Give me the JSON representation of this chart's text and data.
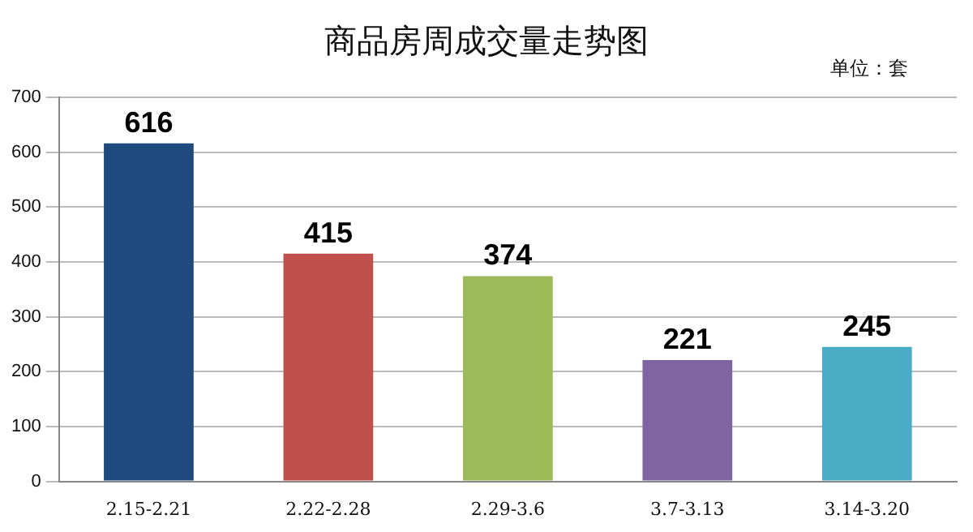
{
  "chart_data": {
    "type": "bar",
    "title": "商品房周成交量走势图",
    "annotations": [
      "单位：套"
    ],
    "categories": [
      "2.15-2.21",
      "2.22-2.28",
      "2.29-3.6",
      "3.7-3.13",
      "3.14-3.20"
    ],
    "values": [
      616,
      415,
      374,
      221,
      245
    ],
    "colors": [
      "#1f4a7e",
      "#c0504d",
      "#9bbb59",
      "#8064a2",
      "#4bacc6"
    ],
    "ylim": [
      0,
      700
    ],
    "yticks": [
      0,
      100,
      200,
      300,
      400,
      500,
      600,
      700
    ],
    "grid": "y",
    "data_labels": true,
    "legend": false
  }
}
